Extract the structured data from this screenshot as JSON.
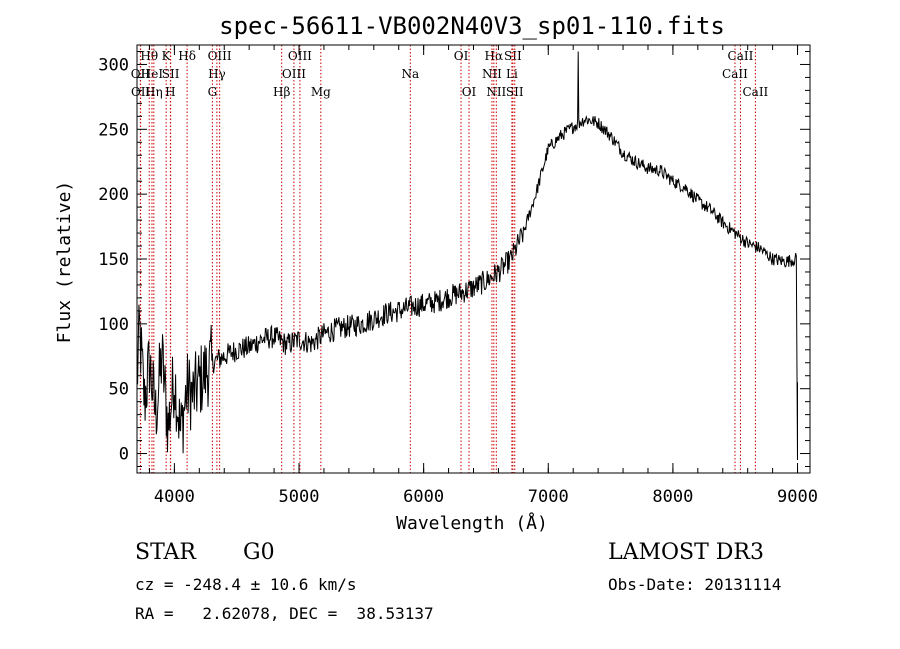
{
  "chart_data": {
    "type": "line",
    "title": "spec-56611-VB002N40V3_sp01-110.fits",
    "xlabel": "Wavelength (Å)",
    "ylabel": "Flux (relative)",
    "xlim": [
      3700,
      9100
    ],
    "ylim": [
      -15,
      315
    ],
    "xticks": [
      4000,
      5000,
      6000,
      7000,
      8000,
      9000
    ],
    "yticks": [
      0,
      50,
      100,
      150,
      200,
      250,
      300
    ],
    "series": [
      {
        "name": "spectrum",
        "color": "#000000",
        "anchors": [
          [
            3700,
            55
          ],
          [
            3720,
            95
          ],
          [
            3760,
            40
          ],
          [
            3800,
            70
          ],
          [
            3850,
            30
          ],
          [
            3900,
            75
          ],
          [
            3950,
            20
          ],
          [
            4000,
            60
          ],
          [
            4050,
            15
          ],
          [
            4100,
            50
          ],
          [
            4150,
            45
          ],
          [
            4200,
            55
          ],
          [
            4300,
            70
          ],
          [
            4400,
            75
          ],
          [
            4500,
            80
          ],
          [
            4600,
            82
          ],
          [
            4700,
            88
          ],
          [
            4800,
            90
          ],
          [
            4900,
            84
          ],
          [
            5000,
            88
          ],
          [
            5100,
            85
          ],
          [
            5200,
            92
          ],
          [
            5300,
            96
          ],
          [
            5400,
            98
          ],
          [
            5500,
            100
          ],
          [
            5600,
            104
          ],
          [
            5700,
            108
          ],
          [
            5800,
            110
          ],
          [
            5900,
            113
          ],
          [
            6000,
            115
          ],
          [
            6100,
            117
          ],
          [
            6200,
            121
          ],
          [
            6300,
            124
          ],
          [
            6400,
            128
          ],
          [
            6500,
            133
          ],
          [
            6600,
            140
          ],
          [
            6700,
            150
          ],
          [
            6800,
            170
          ],
          [
            6900,
            200
          ],
          [
            7000,
            235
          ],
          [
            7100,
            245
          ],
          [
            7200,
            252
          ],
          [
            7300,
            258
          ],
          [
            7400,
            255
          ],
          [
            7500,
            245
          ],
          [
            7600,
            232
          ],
          [
            7700,
            225
          ],
          [
            7800,
            220
          ],
          [
            7900,
            218
          ],
          [
            8000,
            210
          ],
          [
            8100,
            205
          ],
          [
            8200,
            195
          ],
          [
            8300,
            188
          ],
          [
            8400,
            178
          ],
          [
            8500,
            170
          ],
          [
            8600,
            162
          ],
          [
            8700,
            158
          ],
          [
            8800,
            150
          ],
          [
            8900,
            148
          ],
          [
            8990,
            150
          ]
        ],
        "spikes": [
          {
            "x": 7240,
            "y": 310
          },
          {
            "x": 9000,
            "y": -5
          },
          {
            "x": 9000,
            "y": 55
          }
        ]
      }
    ],
    "lines": [
      {
        "label": "OII",
        "x": 3727,
        "row": 2,
        "color": "#cc0000"
      },
      {
        "label": "OII",
        "x": 3729,
        "row": 3,
        "color": "#cc0000"
      },
      {
        "label": "Hθ",
        "x": 3798,
        "row": 1,
        "color": "#cc0000"
      },
      {
        "label": "HeI",
        "x": 3820,
        "row": 2,
        "color": "#cc0000"
      },
      {
        "label": "Hη",
        "x": 3835,
        "row": 3,
        "color": "#cc0000"
      },
      {
        "label": "K",
        "x": 3934,
        "row": 1,
        "color": "#cc0000"
      },
      {
        "label": "SII",
        "x": 3970,
        "row": 2,
        "color": "#cc0000"
      },
      {
        "label": "H",
        "x": 3968,
        "row": 3,
        "color": "#cc0000"
      },
      {
        "label": "Hδ",
        "x": 4102,
        "row": 1,
        "color": "#cc0000"
      },
      {
        "label": "OIII",
        "x": 4363,
        "row": 1,
        "color": "#cc0000"
      },
      {
        "label": "Hγ",
        "x": 4341,
        "row": 2,
        "color": "#cc0000"
      },
      {
        "label": "G",
        "x": 4305,
        "row": 3,
        "color": "#cc0000"
      },
      {
        "label": "Hβ",
        "x": 4861,
        "row": 3,
        "color": "#cc0000"
      },
      {
        "label": "OIII",
        "x": 5007,
        "row": 1,
        "color": "#cc0000"
      },
      {
        "label": "OIII",
        "x": 4959,
        "row": 2,
        "color": "#cc0000"
      },
      {
        "label": "Mg",
        "x": 5175,
        "row": 3,
        "color": "#cc0000"
      },
      {
        "label": "Na",
        "x": 5893,
        "row": 2,
        "color": "#cc0000"
      },
      {
        "label": "OI",
        "x": 6300,
        "row": 1,
        "color": "#cc0000"
      },
      {
        "label": "OI",
        "x": 6364,
        "row": 3,
        "color": "#cc0000"
      },
      {
        "label": "Hα",
        "x": 6563,
        "row": 1,
        "color": "#cc0000"
      },
      {
        "label": "NII",
        "x": 6548,
        "row": 2,
        "color": "#cc0000"
      },
      {
        "label": "NII",
        "x": 6583,
        "row": 3,
        "color": "#cc0000"
      },
      {
        "label": "SII",
        "x": 6716,
        "row": 1,
        "color": "#cc0000"
      },
      {
        "label": "Li",
        "x": 6708,
        "row": 2,
        "color": "#cc0000"
      },
      {
        "label": "SII",
        "x": 6731,
        "row": 3,
        "color": "#cc0000"
      },
      {
        "label": "CaII",
        "x": 8542,
        "row": 1,
        "color": "#cc0000"
      },
      {
        "label": "CaII",
        "x": 8498,
        "row": 2,
        "color": "#cc0000"
      },
      {
        "label": "CaII",
        "x": 8662,
        "row": 3,
        "color": "#cc0000"
      }
    ]
  },
  "info": {
    "class": "STAR",
    "subclass": "G0",
    "survey": "LAMOST DR3",
    "cz": "cz = -248.4 ± 10.6 km/s",
    "obs_date": "Obs-Date: 20131114",
    "coords": "RA =   2.62078, DEC =  38.53137"
  }
}
